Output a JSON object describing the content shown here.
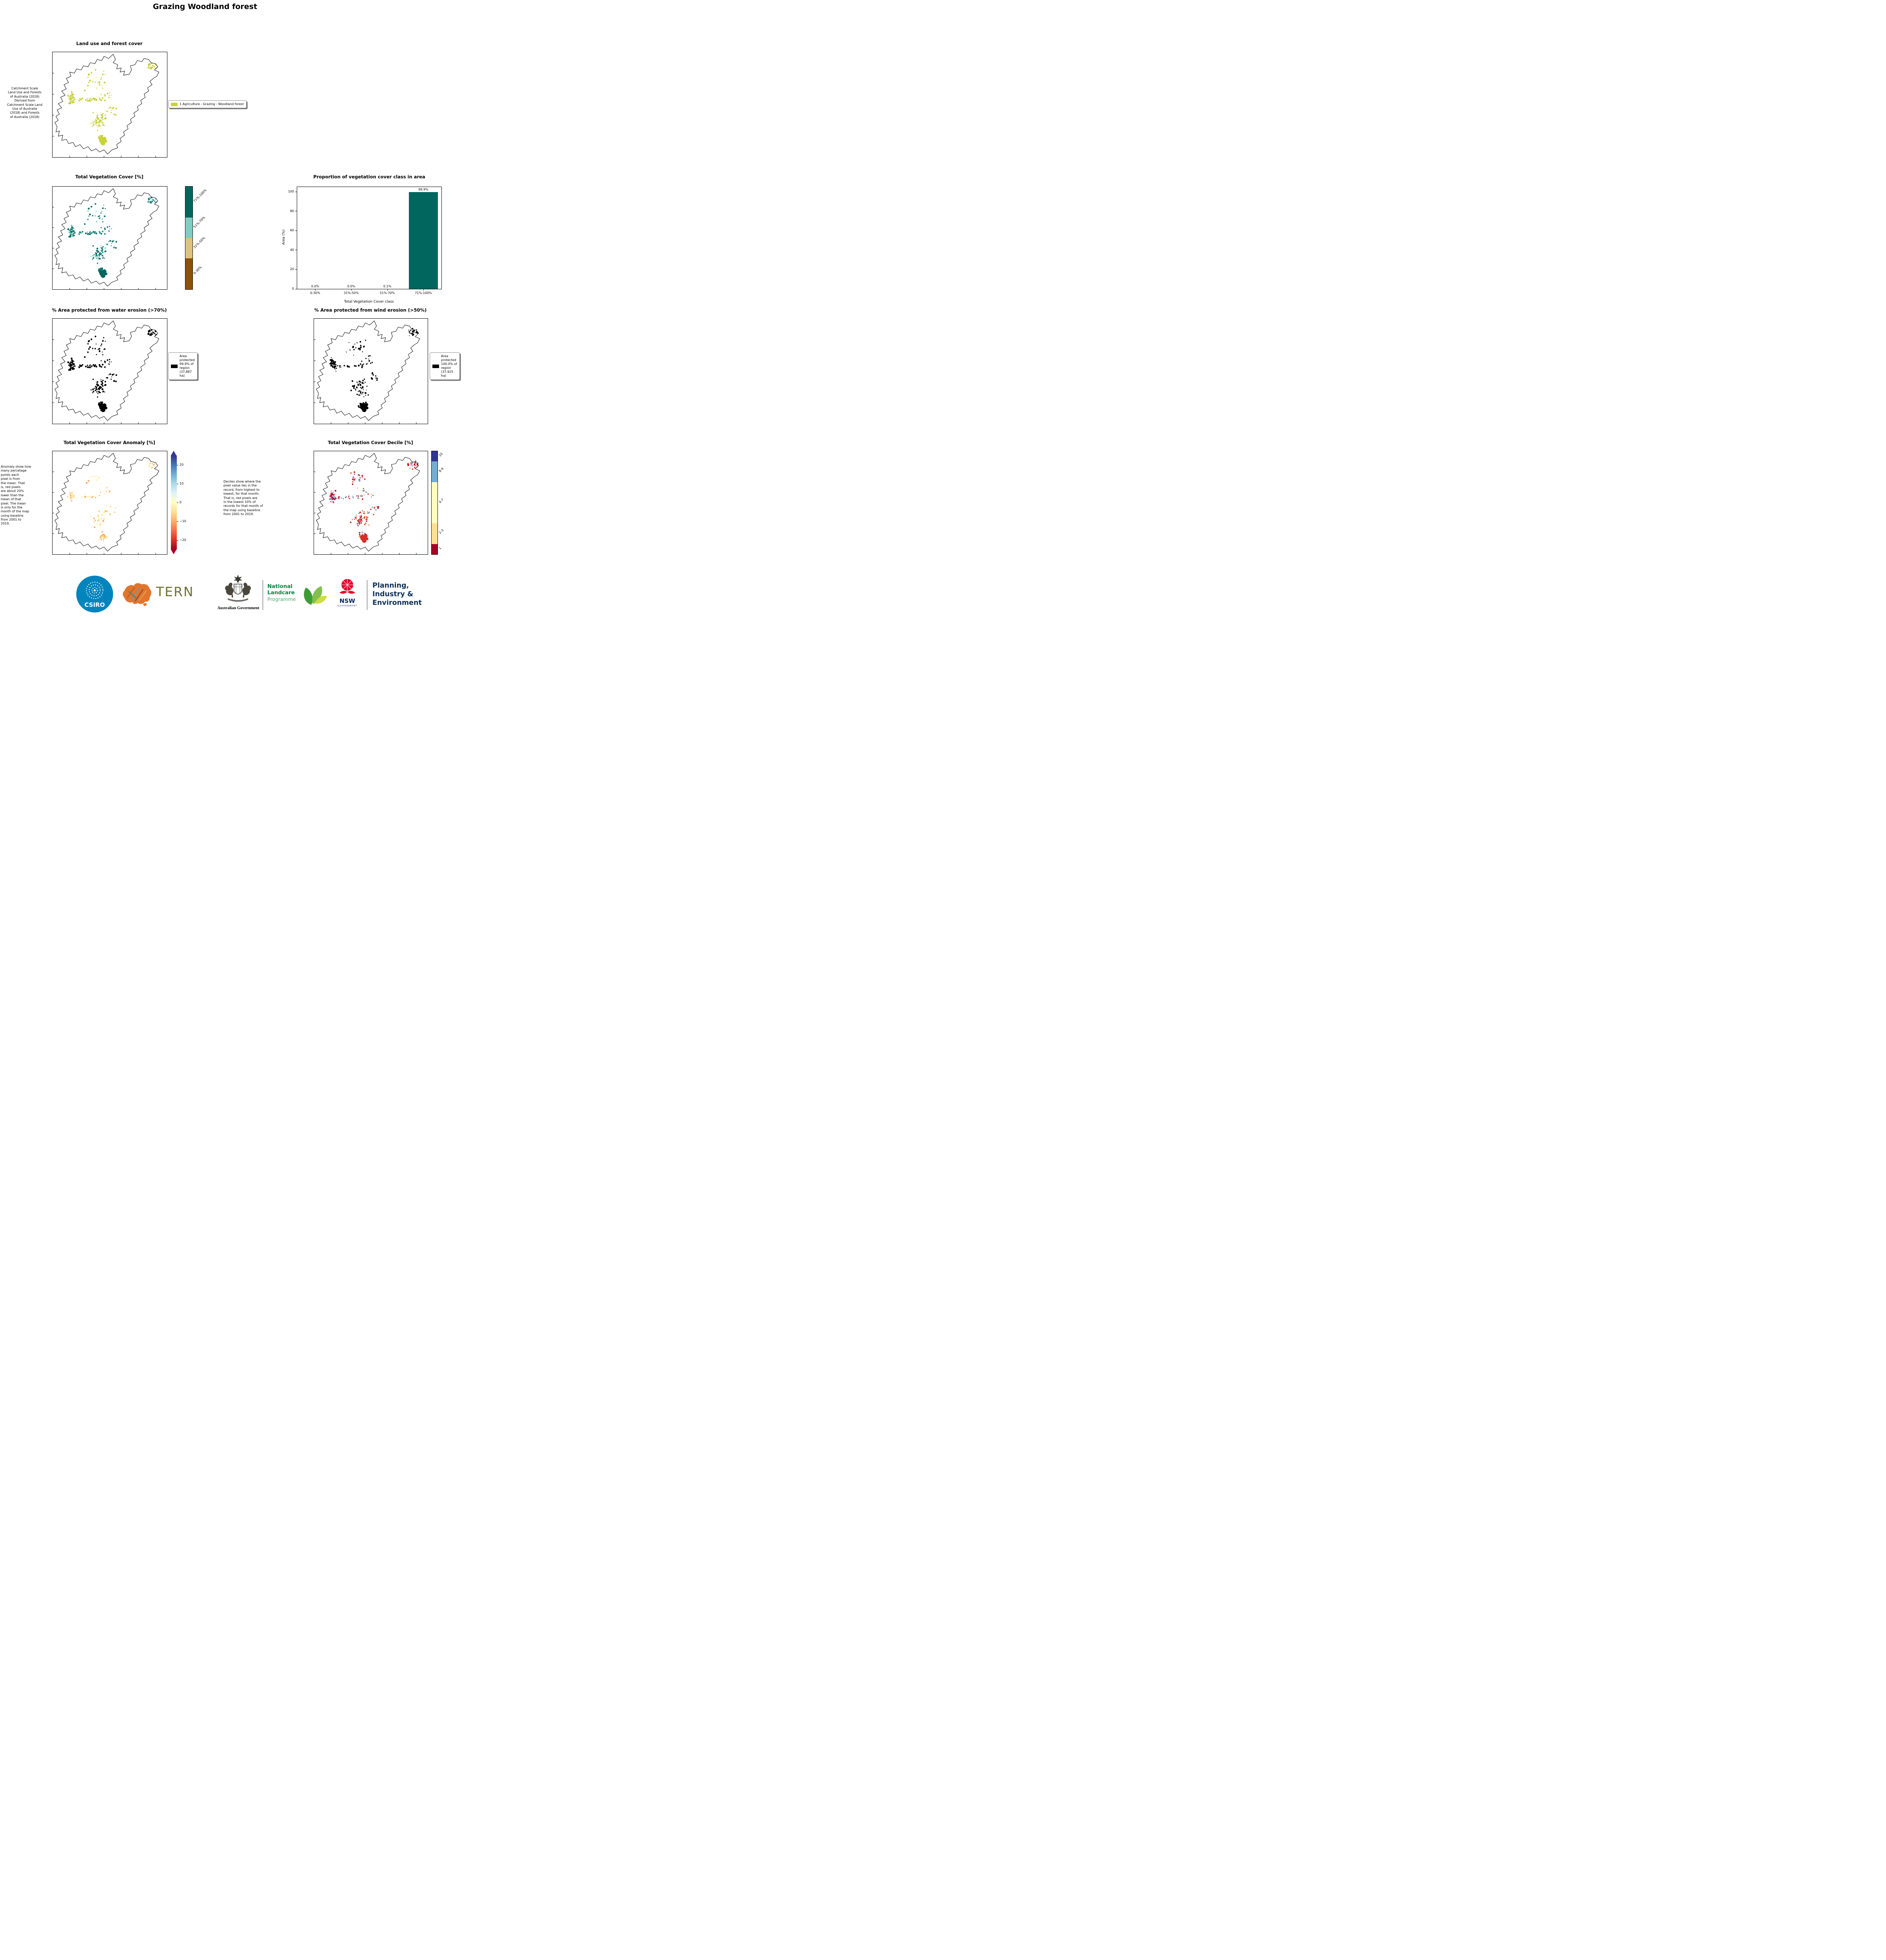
{
  "page_title": "Grazing Woodland forest",
  "panels": {
    "land_use": {
      "title": "Land use and forest cover",
      "note": "Catchment Scale\nLand Use and Forests\nof Australia (2018)\nDerived from\nCatchment Scale Land\nUse of Australia\n(2018) and Forests\nof Australia (2018)",
      "legend_label": "1 Agriculture - Grazing - Woodland forest",
      "legend_color": "#c9d43b",
      "dot_colors": [
        "#c9d43b",
        "#bfca2d",
        "#d3dd58"
      ]
    },
    "veg_cover": {
      "title": "Total Vegetation Cover [%]",
      "classes": [
        {
          "label": "71%-100%",
          "color": "#01665e",
          "span": 30
        },
        {
          "label": "51%-70%",
          "color": "#80cdc1",
          "span": 20
        },
        {
          "label": "31%-50%",
          "color": "#dfc27d",
          "span": 20
        },
        {
          "label": "0-30%",
          "color": "#8c510a",
          "span": 30
        }
      ],
      "dot_colors": [
        "#01665e",
        "#01665e",
        "#02736a",
        "#35978f",
        "#80cdc1"
      ]
    },
    "water_erosion": {
      "title": "% Area protected from water erosion (>70%)",
      "legend_text": "Area\nprotected\n99.9% of\nregion\n(37,887\nha)",
      "legend_color": "#000000",
      "dot_colors": [
        "#000000"
      ]
    },
    "wind_erosion": {
      "title": "% Area protected from wind erosion (>50%)",
      "legend_text": "Area\nprotected\n100.0% of\nregion\n(37,925\nha)",
      "legend_color": "#000000",
      "dot_colors": [
        "#000000"
      ]
    },
    "anomaly": {
      "title": "Total Vegetation Cover Anomaly [%]",
      "note": "Anomaly show how\nmany percetage\npoints each\npixel is from\nthe mean. That\nis, red pixels\nare about 20%\nlower than the\nmean of that\npixel. The mean\nis only for the\nmonth of the map\nusing baseline\nfrom 2001 to\n2019.",
      "colorbar": {
        "ticks": [
          20,
          10,
          0,
          -10,
          -20
        ],
        "range": [
          -25,
          25
        ],
        "gradient_bottom_to_top": [
          "#a50026",
          "#d73027",
          "#f46d43",
          "#fdae61",
          "#fee090",
          "#ffffbf",
          "#e0f3f8",
          "#abd9e9",
          "#74add1",
          "#4575b4",
          "#313695"
        ]
      },
      "dot_colors": [
        "#fde89c",
        "#fdd07e",
        "#fff3c2",
        "#fca55d"
      ]
    },
    "decile": {
      "title": "Total Vegetation Cover Decile [%]",
      "note": "Deciles show where the\npixel value lies in the\nrecord, from highest to\nlowest, for that month.\nThat is, red pixels are\nin the lowest 10% of\nrecords for that month of\nthe map using baseline\nfrom 2001 to 2019.",
      "classes": [
        {
          "label": "10",
          "color": "#313695",
          "span": 10
        },
        {
          "label": "8-9",
          "color": "#74add1",
          "span": 20
        },
        {
          "label": "4-7",
          "color": "#ffffbf",
          "span": 40
        },
        {
          "label": "2-3",
          "color": "#fee090",
          "span": 20
        },
        {
          "label": "1",
          "color": "#a50026",
          "span": 10
        }
      ],
      "dot_colors": [
        "#d73027",
        "#b71d22",
        "#e8703a",
        "#a50026",
        "#6b83c0",
        "#d73027",
        "#9aaed6",
        "#c23b27"
      ]
    }
  },
  "chart_data": {
    "type": "bar",
    "title": "Proportion of vegetation cover class in area",
    "xlabel": "Total Vegetation Cover class",
    "ylabel": "Area (%)",
    "categories": [
      "0-30%",
      "31%-50%",
      "51%-70%",
      "71%-100%"
    ],
    "values": [
      0.0,
      0.0,
      0.1,
      99.9
    ],
    "bar_labels": [
      "0.0%",
      "0.0%",
      "0.1%",
      "99.9%"
    ],
    "yticks": [
      0,
      20,
      40,
      60,
      80,
      100
    ],
    "ylim": [
      0,
      105
    ],
    "bar_color": "#01665e",
    "grid": false,
    "legend_position": "none"
  },
  "footer": {
    "csiro_label": "CSIRO",
    "tern_label": "TERN",
    "aus_gov_label": "Australian Government",
    "landcare_line1": "National",
    "landcare_line2": "Landcare",
    "landcare_line3": "Programme",
    "nsw_label": "NSW",
    "nsw_sub": "GOVERNMENT",
    "planning_line1": "Planning,",
    "planning_line2": "Industry &",
    "planning_line3": "Environment"
  }
}
